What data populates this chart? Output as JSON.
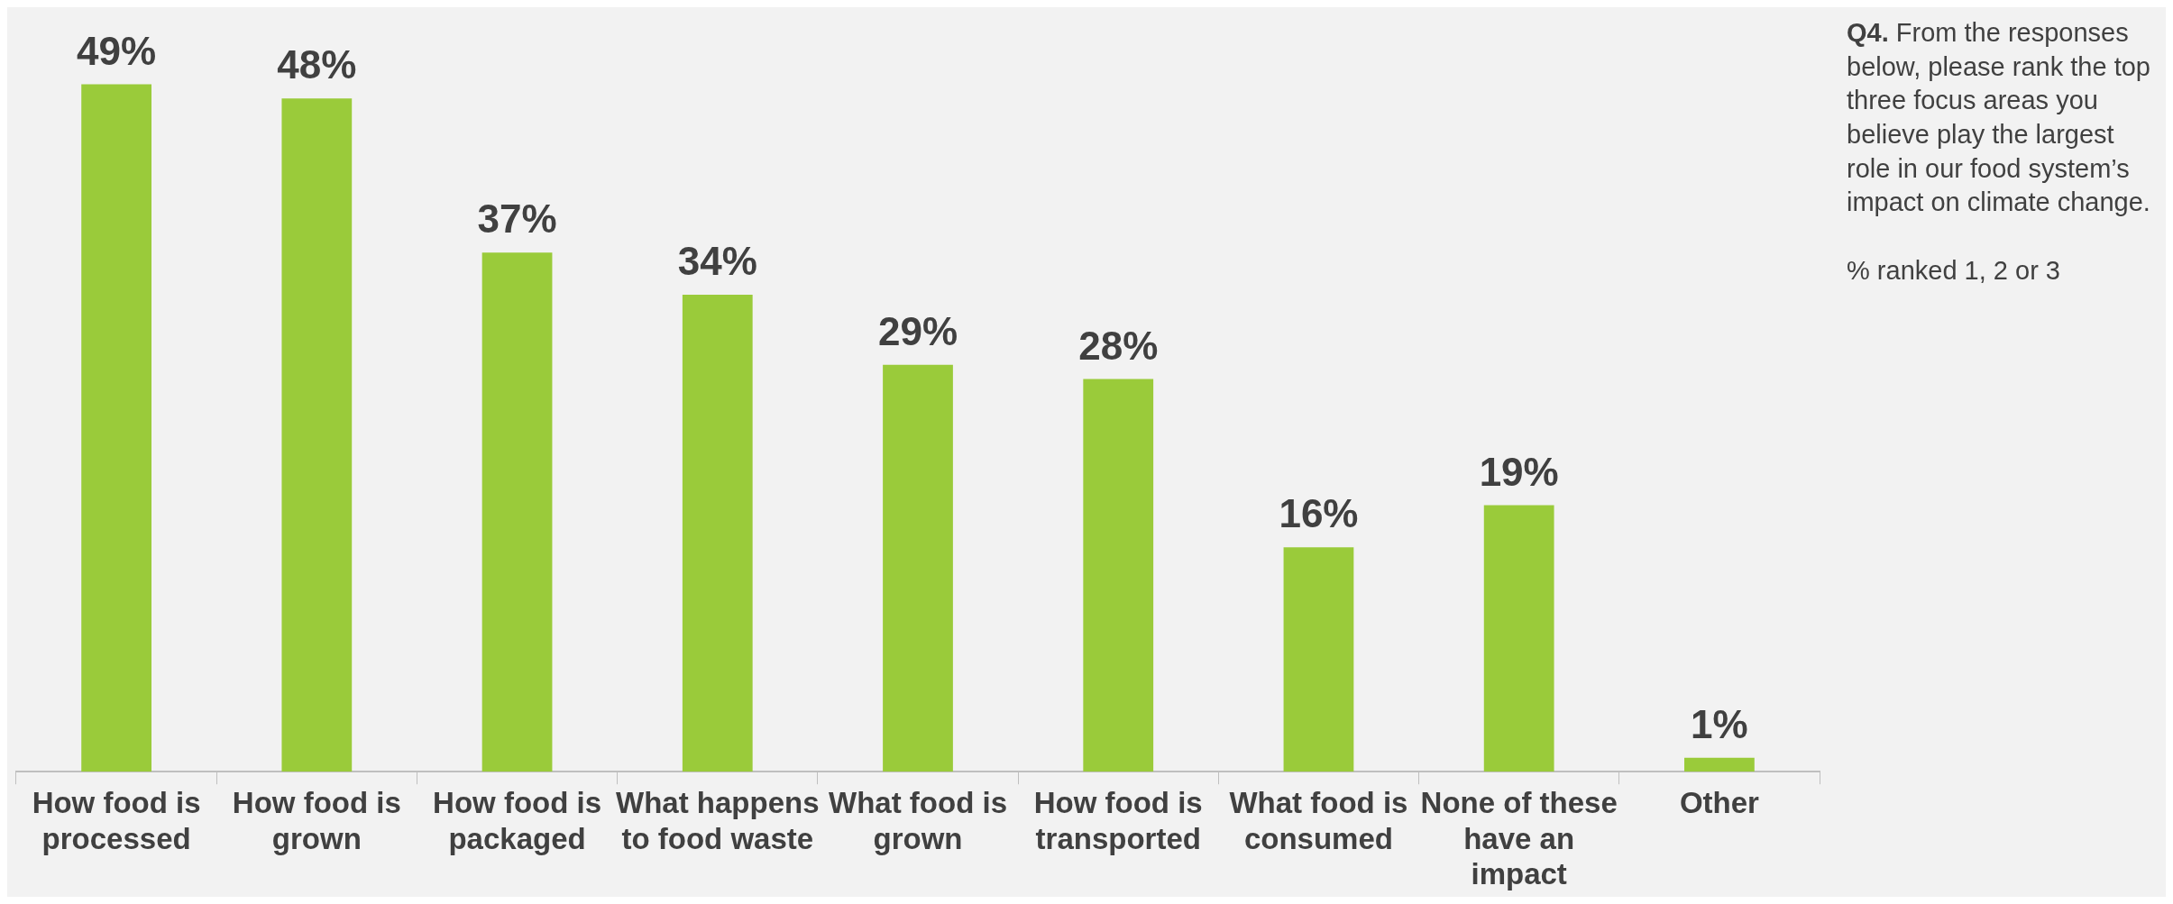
{
  "chart_data": {
    "type": "bar",
    "categories": [
      "How food is processed",
      "How food is grown",
      "How food is packaged",
      "What happens to food waste",
      "What food is grown",
      "How food is transported",
      "What food is consumed",
      "None of these have an impact",
      "Other"
    ],
    "values": [
      49,
      48,
      37,
      34,
      29,
      28,
      16,
      19,
      1
    ],
    "value_labels": [
      "49%",
      "48%",
      "37%",
      "34%",
      "29%",
      "28%",
      "16%",
      "19%",
      "1%"
    ],
    "color": "#9acb3a",
    "annotations": [
      "Q4. From the responses below, please rank the top three focus areas you believe play the largest role in our food system’s impact on climate change.",
      "% ranked 1, 2 or 3"
    ],
    "legend": false,
    "grid": false
  }
}
